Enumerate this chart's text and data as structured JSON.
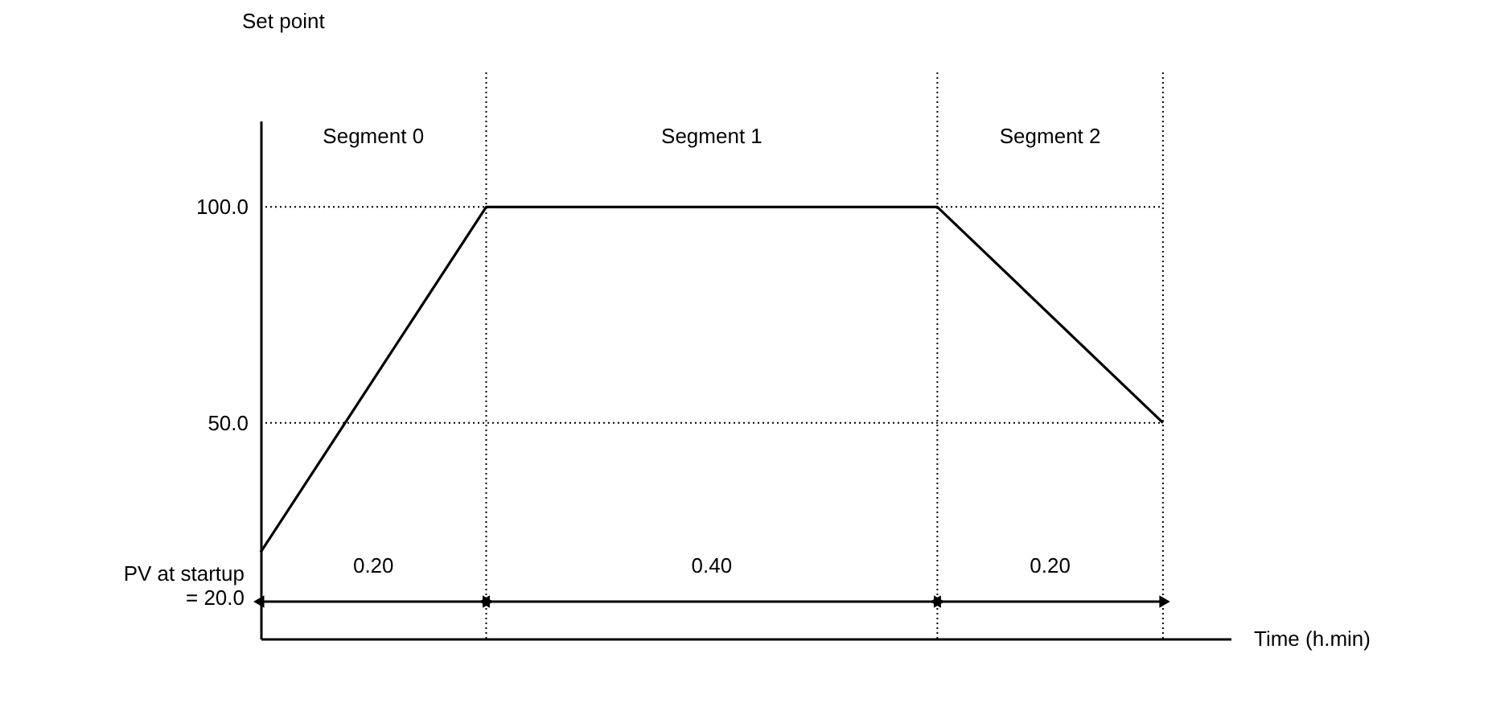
{
  "chart_data": {
    "type": "line",
    "ylabel": "Set point",
    "xlabel": "Time (h.min)",
    "categories": [
      null,
      null,
      null,
      null,
      null
    ],
    "series": [
      {
        "color": "#000000",
        "values": [
          20,
          100,
          100,
          100,
          50
        ]
      }
    ],
    "ylim": [
      0,
      120
    ],
    "yticks": [
      {
        "value": 50,
        "label": "50.0"
      },
      {
        "value": 100,
        "label": "100.0"
      }
    ],
    "tick_labels": "y",
    "grid": false,
    "marker": "none",
    "line_style": "solid",
    "ref_lines": [
      {
        "axis": "y",
        "value": 50,
        "line_style": "dotted"
      },
      {
        "axis": "y",
        "value": 100,
        "line_style": "dotted"
      }
    ],
    "annotations": [
      "Segment 0",
      "Segment 1",
      "Segment 2",
      "0.20",
      "0.40",
      "0.20",
      "PV at startup\n= 20.0"
    ]
  }
}
